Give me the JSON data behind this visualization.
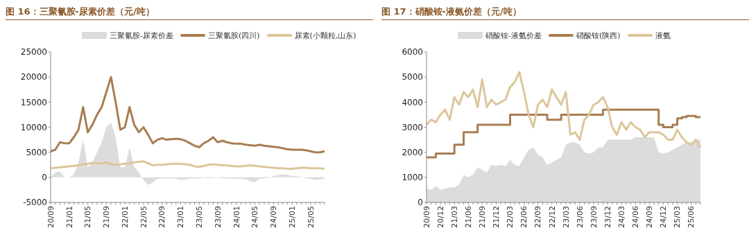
{
  "chart_data": [
    {
      "type": "line",
      "title": "图 16：三聚氰胺-尿素价差（元/吨）",
      "legend": "top",
      "categories": [
        "20/09",
        null,
        null,
        null,
        "21/01",
        null,
        null,
        null,
        "21/05",
        null,
        null,
        null,
        "21/09",
        null,
        null,
        null,
        "22/01",
        null,
        null,
        null,
        "22/05",
        null,
        null,
        null,
        "22/09",
        null,
        null,
        null,
        "23/01",
        null,
        null,
        null,
        "23/05",
        null,
        null,
        null,
        "23/09",
        null,
        null,
        null,
        "24/01",
        null,
        null,
        null,
        "24/05",
        null,
        null,
        null,
        "24/09",
        null,
        null,
        null,
        "25/01",
        null,
        null,
        null,
        "25/05",
        null,
        null,
        null
      ],
      "ylim": [
        -5000,
        25000
      ],
      "yticks": [
        -5000,
        0,
        5000,
        10000,
        15000,
        20000,
        25000
      ],
      "series": [
        {
          "name": "三聚氰胺-尿素价差",
          "type": "area",
          "color": "#dcdcdc",
          "values": [
            0,
            1000,
            1200,
            0,
            0,
            500,
            3000,
            7500,
            2000,
            3000,
            5000,
            7000,
            10000,
            11000,
            8000,
            2000,
            2000,
            6000,
            2000,
            1000,
            -500,
            -1500,
            -1000,
            -300,
            -200,
            -300,
            -200,
            -300,
            -500,
            -400,
            -300,
            -200,
            -300,
            -100,
            -200,
            -100,
            -100,
            -200,
            -300,
            -200,
            -300,
            -300,
            -400,
            -800,
            -1000,
            -300,
            -200,
            -100,
            300,
            500,
            600,
            500,
            300,
            200,
            100,
            -200,
            -300,
            -500,
            -400,
            -300
          ]
        },
        {
          "name": "三聚氰胺(四川)",
          "color": "#a87d50",
          "values": [
            5200,
            5500,
            7000,
            6800,
            6800,
            8000,
            9500,
            14000,
            9000,
            10500,
            12500,
            14000,
            17000,
            20000,
            15000,
            9500,
            10000,
            14000,
            10500,
            9000,
            10000,
            8500,
            6800,
            7500,
            7800,
            7500,
            7600,
            7700,
            7600,
            7300,
            6800,
            6300,
            6000,
            6800,
            7300,
            8000,
            7000,
            7300,
            7000,
            6800,
            6700,
            6700,
            6500,
            6400,
            6300,
            6500,
            6300,
            6200,
            6100,
            6000,
            5800,
            5600,
            5500,
            5500,
            5500,
            5400,
            5200,
            5000,
            5000,
            5200
          ]
        },
        {
          "name": "尿素(小颗粒,山东)",
          "color": "#dcc699",
          "values": [
            1800,
            1900,
            2000,
            2100,
            2200,
            2300,
            2400,
            2600,
            2700,
            2900,
            2800,
            2700,
            3000,
            2600,
            2500,
            2600,
            2700,
            2800,
            3000,
            3100,
            3200,
            2800,
            2400,
            2500,
            2500,
            2600,
            2700,
            2700,
            2700,
            2600,
            2500,
            2200,
            2100,
            2300,
            2500,
            2600,
            2500,
            2400,
            2400,
            2300,
            2200,
            2200,
            2300,
            2400,
            2300,
            2200,
            2100,
            2000,
            1900,
            1800,
            1800,
            1700,
            1700,
            1800,
            1900,
            1900,
            1800,
            1800,
            1800,
            1700
          ]
        }
      ]
    },
    {
      "type": "line",
      "title": "图 17：硝酸铵-液氨价差（元/吨）",
      "legend": "top",
      "categories": [
        "20/09",
        null,
        null,
        "20/12",
        null,
        null,
        "21/03",
        null,
        null,
        "21/06",
        null,
        null,
        "21/09",
        null,
        null,
        "21/12",
        null,
        null,
        "22/03",
        null,
        null,
        "22/06",
        null,
        null,
        "22/09",
        null,
        null,
        "22/12",
        null,
        null,
        "23/03",
        null,
        null,
        "23/06",
        null,
        null,
        "23/09",
        null,
        null,
        "23/12",
        null,
        null,
        "24/03",
        null,
        null,
        "24/06",
        null,
        null,
        "24/09",
        null,
        null,
        "24/12",
        null,
        null,
        "25/03",
        null,
        null,
        "25/06",
        null,
        null
      ],
      "ylim": [
        0,
        6000
      ],
      "yticks": [
        0,
        1000,
        2000,
        3000,
        4000,
        5000,
        6000
      ],
      "series": [
        {
          "name": "硝酸铵-液氨价差",
          "type": "area",
          "color": "#dcdcdc",
          "values": [
            550,
            500,
            650,
            500,
            550,
            600,
            600,
            700,
            1100,
            1000,
            1100,
            1400,
            1300,
            1200,
            1500,
            1450,
            1500,
            1450,
            1700,
            1500,
            1450,
            1800,
            2100,
            2200,
            1900,
            1800,
            1500,
            1600,
            1700,
            1800,
            2300,
            2400,
            2400,
            2300,
            2000,
            1950,
            2000,
            2200,
            2200,
            2500,
            2500,
            2500,
            2500,
            2500,
            2500,
            2600,
            2600,
            2600,
            2600,
            2600,
            2000,
            1950,
            2000,
            2100,
            2200,
            2300,
            2400,
            2400,
            2500,
            2500
          ]
        },
        {
          "name": "硝酸铵(陕西)",
          "type": "step",
          "color": "#a87d50",
          "values": [
            1800,
            1800,
            1950,
            1950,
            1950,
            1950,
            2300,
            2300,
            2800,
            2800,
            2800,
            3100,
            3100,
            3100,
            3100,
            3100,
            3100,
            3100,
            3500,
            3500,
            3500,
            3500,
            3500,
            3500,
            3500,
            3500,
            3300,
            3300,
            3300,
            3500,
            3500,
            3500,
            3500,
            3500,
            3500,
            3500,
            3500,
            3500,
            3700,
            3700,
            3700,
            3700,
            3700,
            3700,
            3700,
            3700,
            3700,
            3700,
            3700,
            3700,
            3100,
            3000,
            3000,
            3100,
            3350,
            3400,
            3450,
            3450,
            3400,
            3400
          ]
        },
        {
          "name": "液氨",
          "color": "#dcc699",
          "values": [
            3100,
            3300,
            3200,
            3500,
            3700,
            3300,
            4200,
            3900,
            4400,
            4200,
            4500,
            3800,
            4900,
            3800,
            4100,
            3900,
            4000,
            4100,
            4600,
            4800,
            5200,
            4400,
            3500,
            3000,
            3900,
            4100,
            3800,
            4500,
            4200,
            3900,
            4400,
            2700,
            2800,
            2500,
            3300,
            3500,
            3900,
            4000,
            4200,
            3800,
            3000,
            2700,
            3200,
            2900,
            3200,
            3000,
            2900,
            2600,
            2800,
            2800,
            2800,
            2700,
            2500,
            2500,
            2900,
            2600,
            2400,
            2300,
            2500,
            2200
          ]
        }
      ]
    }
  ]
}
